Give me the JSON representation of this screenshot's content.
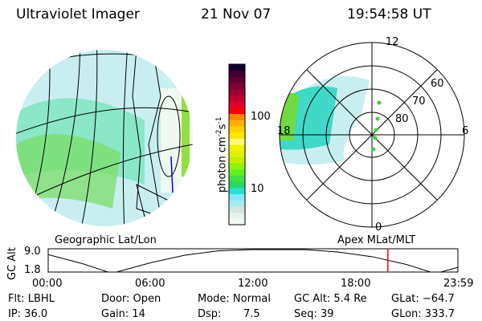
{
  "header": {
    "instrument": "Ultraviolet Imager",
    "date": "21 Nov 07",
    "time": "19:54:58 UT"
  },
  "colorbar": {
    "label": "photon cm",
    "label_sup1": "-2",
    "label_mid": "s",
    "label_sup2": "-1",
    "ticks": [
      "100",
      "10"
    ],
    "colors": [
      "#f0f8f0",
      "#e6f2ec",
      "#d4e6e2",
      "#a8eaf0",
      "#86e8f4",
      "#28e0d8",
      "#28d868",
      "#40e040",
      "#60f020",
      "#90f010",
      "#c0f000",
      "#e0f000",
      "#f0f000",
      "#fff878",
      "#ffe800",
      "#ffd000",
      "#ffb000",
      "#ff8800",
      "#ff0000",
      "#e00030",
      "#c00030",
      "#a00030",
      "#800030",
      "#600030",
      "#400030",
      "#100030"
    ]
  },
  "polar": {
    "labels": {
      "top": "12",
      "bottom": "0",
      "left": "18",
      "right": "6"
    },
    "rings": [
      "60",
      "70",
      "80"
    ]
  },
  "timeline": {
    "left_label": "Geographic Lat/Lon",
    "right_label": "Apex MLat/MLT",
    "ylabel": "GC Alt",
    "yticks": [
      "9.0",
      "1.8"
    ],
    "xticks": [
      "00:00",
      "06:00",
      "12:00",
      "18:00",
      "23:59"
    ],
    "current_time_fraction": 0.829,
    "marker_color": "#ff0000",
    "altitude_curve": [
      [
        0,
        7.4
      ],
      [
        2,
        4.5
      ],
      [
        3.5,
        1.8
      ],
      [
        4,
        1.8
      ],
      [
        6,
        4.8
      ],
      [
        8,
        7.2
      ],
      [
        10,
        8.6
      ],
      [
        12,
        9.0
      ],
      [
        15,
        9.0
      ],
      [
        17,
        8.2
      ],
      [
        19,
        6.7
      ],
      [
        21,
        4.2
      ],
      [
        22.4,
        1.8
      ],
      [
        23,
        1.8
      ],
      [
        24,
        3.3
      ]
    ]
  },
  "info": {
    "filter": "Flt: LBHL",
    "ip": "IP: 36.0",
    "door": "Door: Open",
    "gain": "Gain: 14",
    "mode": "Mode: Normal",
    "dsp": "Dsp:",
    "dsp_value": "7.5",
    "gc_alt": "GC Alt: 5.4 Re",
    "seq": "Seq: 39",
    "glat": "GLat: −64.7",
    "glon": "GLon: 333.7"
  }
}
